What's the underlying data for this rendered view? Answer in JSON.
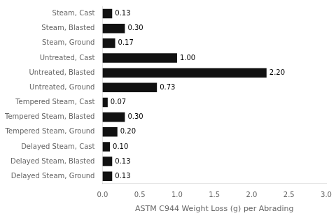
{
  "chart_data": {
    "type": "bar",
    "orientation": "horizontal",
    "categories": [
      "Steam, Cast",
      "Steam, Blasted",
      "Steam, Ground",
      "Untreated, Cast",
      "Untreated, Blasted",
      "Untreated, Ground",
      "Tempered Steam, Cast",
      "Tempered Steam, Blasted",
      "Tempered Steam, Ground",
      "Delayed Steam, Cast",
      "Delayed Steam, Blasted",
      "Delayed Steam, Ground"
    ],
    "values": [
      0.13,
      0.3,
      0.17,
      1.0,
      2.2,
      0.73,
      0.07,
      0.3,
      0.2,
      0.1,
      0.13,
      0.13
    ],
    "value_labels": [
      "0.13",
      "0.30",
      "0.17",
      "1.00",
      "2.20",
      "0.73",
      "0.07",
      "0.30",
      "0.20",
      "0.10",
      "0.13",
      "0.13"
    ],
    "data_labels": true,
    "color": "#111111",
    "xlabel": "ASTM C944 Weight Loss (g) per Abrading",
    "xlim": [
      0,
      3.0
    ],
    "xticks": [
      {
        "value": 0.0,
        "label": "0.0"
      },
      {
        "value": 0.5,
        "label": "0.5"
      },
      {
        "value": 1.0,
        "label": "1.0"
      },
      {
        "value": 1.5,
        "label": "1.5"
      },
      {
        "value": 2.0,
        "label": "2.0"
      },
      {
        "value": 2.5,
        "label": "2.5"
      },
      {
        "value": 3.0,
        "label": "3.0"
      }
    ],
    "grid": false
  }
}
